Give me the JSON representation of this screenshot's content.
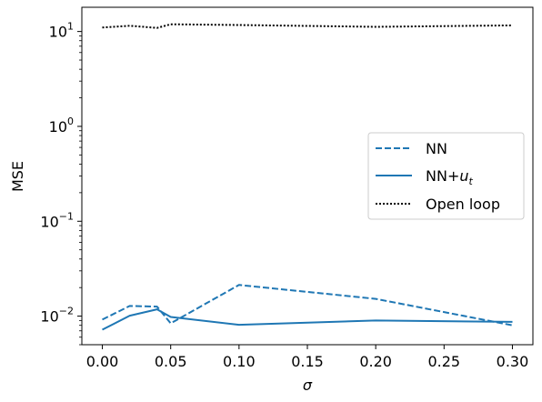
{
  "chart_data": {
    "type": "line",
    "xlabel": "σ",
    "ylabel": "MSE",
    "xlim": [
      -0.015,
      0.315
    ],
    "ylim": [
      0.005,
      18
    ],
    "yscale": "log",
    "grid": false,
    "legend_position": "right",
    "x_ticks": [
      0.0,
      0.05,
      0.1,
      0.15,
      0.2,
      0.25,
      0.3
    ],
    "x_tick_labels": [
      "0.00",
      "0.05",
      "0.10",
      "0.15",
      "0.20",
      "0.25",
      "0.30"
    ],
    "y_ticks": [
      0.01,
      0.1,
      1,
      10
    ],
    "y_tick_labels": [
      {
        "base": "10",
        "exp": "−2"
      },
      {
        "base": "10",
        "exp": "−1"
      },
      {
        "base": "10",
        "exp": "0"
      },
      {
        "base": "10",
        "exp": "1"
      }
    ],
    "series": [
      {
        "name": "NN",
        "style": "dashed",
        "color": "#1f77b4",
        "x": [
          0.0,
          0.02,
          0.04,
          0.05,
          0.1,
          0.2,
          0.3
        ],
        "y": [
          0.0092,
          0.0128,
          0.0126,
          0.0084,
          0.0213,
          0.0152,
          0.008
        ]
      },
      {
        "name": "NN+",
        "name_sub": "u",
        "name_subscript": "t",
        "style": "solid",
        "color": "#1f77b4",
        "x": [
          0.0,
          0.02,
          0.04,
          0.05,
          0.1,
          0.2,
          0.3
        ],
        "y": [
          0.0072,
          0.0101,
          0.0118,
          0.0098,
          0.0081,
          0.009,
          0.0087
        ]
      },
      {
        "name": "Open loop",
        "style": "dotted",
        "color": "#000000",
        "x": [
          0.0,
          0.02,
          0.04,
          0.05,
          0.1,
          0.2,
          0.3
        ],
        "y": [
          11.0,
          11.5,
          10.9,
          11.9,
          11.7,
          11.2,
          11.6
        ]
      }
    ]
  }
}
